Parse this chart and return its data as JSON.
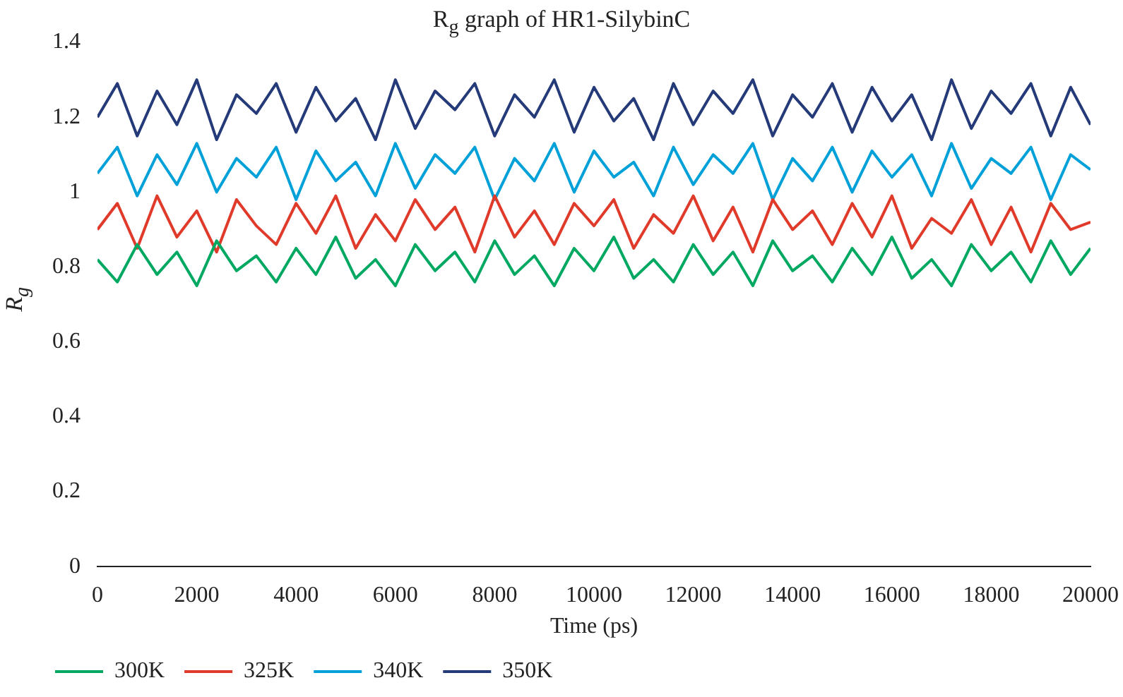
{
  "chart_data": {
    "type": "line",
    "title": "R$_{g}$ graph of HR1-SilybinC",
    "xlabel": "Time (ps)",
    "ylabel": "R$_{g}$",
    "x": [
      0,
      400,
      800,
      1200,
      1600,
      2000,
      2400,
      2800,
      3200,
      3600,
      4000,
      4400,
      4800,
      5200,
      5600,
      6000,
      6400,
      6800,
      7200,
      7600,
      8000,
      8400,
      8800,
      9200,
      9600,
      10000,
      10400,
      10800,
      11200,
      11600,
      12000,
      12400,
      12800,
      13200,
      13600,
      14000,
      14400,
      14800,
      15200,
      15600,
      16000,
      16400,
      16800,
      17200,
      17600,
      18000,
      18400,
      18800,
      19200,
      19600,
      20000
    ],
    "series": [
      {
        "name": "300K",
        "color": "#00a862",
        "values": [
          0.82,
          0.76,
          0.86,
          0.78,
          0.84,
          0.75,
          0.87,
          0.79,
          0.83,
          0.76,
          0.85,
          0.78,
          0.88,
          0.77,
          0.82,
          0.75,
          0.86,
          0.79,
          0.84,
          0.76,
          0.87,
          0.78,
          0.83,
          0.75,
          0.85,
          0.79,
          0.88,
          0.77,
          0.82,
          0.76,
          0.86,
          0.78,
          0.84,
          0.75,
          0.87,
          0.79,
          0.83,
          0.76,
          0.85,
          0.78,
          0.88,
          0.77,
          0.82,
          0.75,
          0.86,
          0.79,
          0.84,
          0.76,
          0.87,
          0.78,
          0.85
        ]
      },
      {
        "name": "325K",
        "color": "#e03a2a",
        "values": [
          0.9,
          0.97,
          0.85,
          0.99,
          0.88,
          0.95,
          0.84,
          0.98,
          0.91,
          0.86,
          0.97,
          0.89,
          0.99,
          0.85,
          0.94,
          0.87,
          0.98,
          0.9,
          0.96,
          0.84,
          0.99,
          0.88,
          0.95,
          0.86,
          0.97,
          0.91,
          0.98,
          0.85,
          0.94,
          0.89,
          0.99,
          0.87,
          0.96,
          0.84,
          0.98,
          0.9,
          0.95,
          0.86,
          0.97,
          0.88,
          0.99,
          0.85,
          0.93,
          0.89,
          0.98,
          0.86,
          0.96,
          0.84,
          0.97,
          0.9,
          0.92
        ]
      },
      {
        "name": "340K",
        "color": "#00a0d8",
        "values": [
          1.05,
          1.12,
          0.99,
          1.1,
          1.02,
          1.13,
          1.0,
          1.09,
          1.04,
          1.12,
          0.98,
          1.11,
          1.03,
          1.08,
          0.99,
          1.13,
          1.01,
          1.1,
          1.05,
          1.12,
          0.98,
          1.09,
          1.03,
          1.13,
          1.0,
          1.11,
          1.04,
          1.08,
          0.99,
          1.12,
          1.02,
          1.1,
          1.05,
          1.13,
          0.98,
          1.09,
          1.03,
          1.12,
          1.0,
          1.11,
          1.04,
          1.1,
          0.99,
          1.13,
          1.01,
          1.09,
          1.05,
          1.12,
          0.98,
          1.1,
          1.06
        ]
      },
      {
        "name": "350K",
        "color": "#253a78",
        "values": [
          1.2,
          1.29,
          1.15,
          1.27,
          1.18,
          1.3,
          1.14,
          1.26,
          1.21,
          1.29,
          1.16,
          1.28,
          1.19,
          1.25,
          1.14,
          1.3,
          1.17,
          1.27,
          1.22,
          1.29,
          1.15,
          1.26,
          1.2,
          1.3,
          1.16,
          1.28,
          1.19,
          1.25,
          1.14,
          1.29,
          1.18,
          1.27,
          1.21,
          1.3,
          1.15,
          1.26,
          1.2,
          1.29,
          1.16,
          1.28,
          1.19,
          1.26,
          1.14,
          1.3,
          1.17,
          1.27,
          1.21,
          1.29,
          1.15,
          1.28,
          1.18
        ]
      }
    ],
    "xlim": [
      0,
      20000
    ],
    "xticks": [
      0,
      2000,
      4000,
      6000,
      8000,
      10000,
      12000,
      14000,
      16000,
      18000,
      20000
    ],
    "ylim": [
      0,
      1.4
    ],
    "yticks": [
      0,
      0.2,
      0.4,
      0.6,
      0.8,
      1,
      1.2,
      1.4
    ],
    "grid": false,
    "legend": "bottom",
    "marker": "none",
    "line_style": "solid"
  }
}
